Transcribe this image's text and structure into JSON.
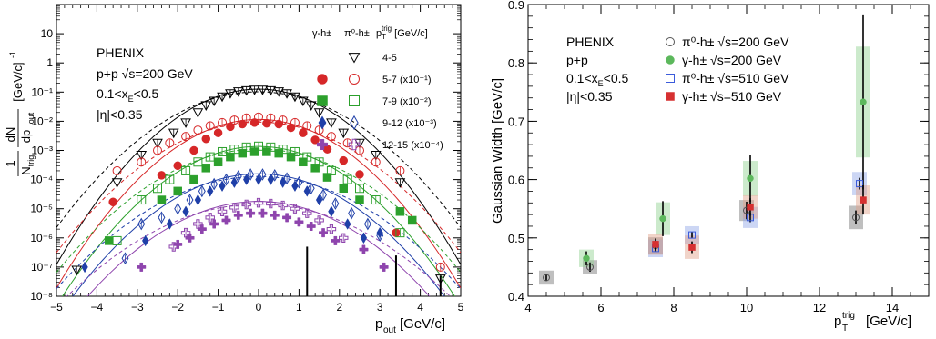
{
  "chart_data": [
    {
      "type": "scatter",
      "experiment": "PHENIX",
      "system": "p+p",
      "energy": "√s=200 GeV",
      "cut_xe": "0.1<x",
      "cut_xe_sub": "E",
      "cut_xe_tail": "<0.5",
      "cut_eta": "|η|<0.35",
      "ylabel_num": "1",
      "ylabel_den": "N",
      "ylabel_den_sub": "trig",
      "ylabel_frac2_num": "dN",
      "ylabel_frac2_den": "dp",
      "ylabel_frac2_den_sub": "out",
      "ylabel_unit": "[GeV/c]",
      "ylabel_unit_sup": "-1",
      "xlabel": "p",
      "xlabel_sub": "out",
      "xlabel_unit": "[GeV/c]",
      "xlim": [
        -5,
        5
      ],
      "ylim_log": [
        1e-08,
        100
      ],
      "yscale": "log",
      "xticks": [
        "−5",
        "−4",
        "−3",
        "−2",
        "−1",
        "0",
        "1",
        "2",
        "3",
        "4",
        "5"
      ],
      "yticks": [
        "10",
        "1",
        "10⁻¹",
        "10⁻²",
        "10⁻³",
        "10⁻⁴",
        "10⁻⁵",
        "10⁻⁶",
        "10⁻⁷",
        "10⁻⁸"
      ],
      "legend_header": {
        "gamma": "γ-h±",
        "pi0": "π⁰-h±",
        "ptrig": "p",
        "ptrig_sub": "T",
        "ptrig_sup": "trig",
        "unit": "[GeV/c]"
      },
      "legend_position": "top-right",
      "series": [
        {
          "label": "4-5",
          "scale": "",
          "color": "#000000",
          "gamma_marker": "",
          "pi0_marker": "triangle-down-open",
          "sigma": 1.0,
          "norm": 0.12,
          "points": [
            [
              -4.5,
              8e-08
            ],
            [
              -3.5,
              8e-05
            ],
            [
              -2.9,
              0.0007
            ],
            [
              -2.5,
              0.0018
            ],
            [
              -2.1,
              0.004
            ],
            [
              -1.8,
              0.009
            ],
            [
              -1.5,
              0.02
            ],
            [
              -1.3,
              0.035
            ],
            [
              -1.1,
              0.05
            ],
            [
              -0.9,
              0.07
            ],
            [
              -0.7,
              0.09
            ],
            [
              -0.5,
              0.105
            ],
            [
              -0.3,
              0.115
            ],
            [
              -0.1,
              0.12
            ],
            [
              0.1,
              0.12
            ],
            [
              0.3,
              0.115
            ],
            [
              0.5,
              0.105
            ],
            [
              0.7,
              0.09
            ],
            [
              0.9,
              0.07
            ],
            [
              1.1,
              0.05
            ],
            [
              1.3,
              0.035
            ],
            [
              1.5,
              0.02
            ],
            [
              1.8,
              0.009
            ],
            [
              2.1,
              0.004
            ],
            [
              2.5,
              0.0018
            ],
            [
              2.9,
              0.0007
            ],
            [
              3.5,
              8e-05
            ],
            [
              4.5,
              4e-08
            ]
          ]
        },
        {
          "label": "5-7 (x10⁻¹)",
          "scale": "",
          "color": "#d62728",
          "gamma_marker": "circle",
          "pi0_marker": "circle-open",
          "sigma": 1.02,
          "norm": 0.011,
          "gamma_points": [
            [
              -3.6,
              1.7e-05
            ],
            [
              -2.4,
              0.00014
            ],
            [
              -2.0,
              0.0003
            ],
            [
              -1.6,
              0.001
            ],
            [
              -1.3,
              0.0025
            ],
            [
              -1.0,
              0.004
            ],
            [
              -0.7,
              0.0065
            ],
            [
              -0.4,
              0.008
            ],
            [
              -0.1,
              0.009
            ],
            [
              0.2,
              0.0085
            ],
            [
              0.5,
              0.008
            ],
            [
              0.8,
              0.006
            ],
            [
              1.1,
              0.004
            ],
            [
              1.4,
              0.0023
            ],
            [
              1.7,
              0.0011
            ],
            [
              2.1,
              0.00045
            ],
            [
              2.5,
              0.00015
            ],
            [
              3.4,
              1.5e-06
            ]
          ],
          "pi0_points": [
            [
              -3.5,
              0.0002
            ],
            [
              -2.9,
              0.0004
            ],
            [
              -2.5,
              0.001
            ],
            [
              -2.2,
              0.0018
            ],
            [
              -1.8,
              0.003
            ],
            [
              -1.5,
              0.005
            ],
            [
              -1.2,
              0.007
            ],
            [
              -0.9,
              0.009
            ],
            [
              -0.6,
              0.011
            ],
            [
              -0.3,
              0.013
            ],
            [
              0.0,
              0.014
            ],
            [
              0.3,
              0.013
            ],
            [
              0.6,
              0.011
            ],
            [
              0.9,
              0.009
            ],
            [
              1.2,
              0.007
            ],
            [
              1.5,
              0.005
            ],
            [
              1.8,
              0.003
            ],
            [
              2.2,
              0.0018
            ],
            [
              2.5,
              0.001
            ],
            [
              2.9,
              0.0004
            ],
            [
              3.5,
              0.0002
            ],
            [
              4.5,
              1e-07
            ]
          ]
        },
        {
          "label": "7-9 (x10⁻²)",
          "scale": "",
          "color": "#2ca02c",
          "gamma_marker": "square",
          "pi0_marker": "square-open",
          "sigma": 1.05,
          "norm": 0.0013,
          "gamma_points": [
            [
              -3.7,
              8e-07
            ],
            [
              -2.4,
              2e-05
            ],
            [
              -2.0,
              4e-05
            ],
            [
              -1.6,
              0.0001
            ],
            [
              -1.3,
              0.00025
            ],
            [
              -1.0,
              0.0004
            ],
            [
              -0.7,
              0.0006
            ],
            [
              -0.4,
              0.0008
            ],
            [
              -0.1,
              0.0009
            ],
            [
              0.2,
              0.0009
            ],
            [
              0.5,
              0.0008
            ],
            [
              0.8,
              0.0006
            ],
            [
              1.1,
              0.0004
            ],
            [
              1.4,
              0.00025
            ],
            [
              1.7,
              0.00012
            ],
            [
              2.1,
              5e-05
            ],
            [
              2.5,
              2e-05
            ],
            [
              3.5,
              8e-06
            ],
            [
              3.8,
              4e-06
            ]
          ],
          "pi0_points": [
            [
              -3.5,
              8e-07
            ],
            [
              -2.9,
              2e-05
            ],
            [
              -2.5,
              5e-05
            ],
            [
              -2.2,
              0.0001
            ],
            [
              -1.8,
              0.0002
            ],
            [
              -1.5,
              0.0004
            ],
            [
              -1.2,
              0.0006
            ],
            [
              -0.9,
              0.0009
            ],
            [
              -0.6,
              0.0011
            ],
            [
              -0.3,
              0.0013
            ],
            [
              0.0,
              0.0014
            ],
            [
              0.3,
              0.0013
            ],
            [
              0.6,
              0.0011
            ],
            [
              0.9,
              0.0009
            ],
            [
              1.2,
              0.0006
            ],
            [
              1.5,
              0.0004
            ],
            [
              1.8,
              0.0002
            ],
            [
              2.2,
              0.0001
            ],
            [
              2.5,
              5e-05
            ],
            [
              2.9,
              2e-05
            ],
            [
              3.5,
              1.5e-06
            ]
          ]
        },
        {
          "label": "9-12 (x10⁻³)",
          "scale": "",
          "color": "#1f3fa8",
          "gamma_marker": "diamond",
          "pi0_marker": "diamond-open",
          "sigma": 1.1,
          "norm": 0.00015,
          "gamma_points": [
            [
              -4.3,
              1e-07
            ],
            [
              -2.8,
              8e-07
            ],
            [
              -2.2,
              3e-06
            ],
            [
              -1.8,
              8e-06
            ],
            [
              -1.5,
              2e-05
            ],
            [
              -1.2,
              4e-05
            ],
            [
              -0.9,
              6e-05
            ],
            [
              -0.6,
              8e-05
            ],
            [
              -0.3,
              0.0001
            ],
            [
              0.0,
              0.0001
            ],
            [
              0.3,
              0.0001
            ],
            [
              0.6,
              8e-05
            ],
            [
              0.9,
              6e-05
            ],
            [
              1.2,
              4e-05
            ],
            [
              1.5,
              2e-05
            ],
            [
              1.8,
              8e-06
            ],
            [
              2.2,
              3e-06
            ],
            [
              2.6,
              1e-06
            ],
            [
              3.0,
              1.5e-06
            ]
          ],
          "pi0_points": [
            [
              -3.3,
              2e-07
            ],
            [
              -2.9,
              3e-06
            ],
            [
              -2.4,
              5e-06
            ],
            [
              -2.0,
              1e-05
            ],
            [
              -1.7,
              2e-05
            ],
            [
              -1.4,
              4e-05
            ],
            [
              -1.1,
              7e-05
            ],
            [
              -0.8,
              0.0001
            ],
            [
              -0.5,
              0.00013
            ],
            [
              -0.2,
              0.00015
            ],
            [
              0.1,
              0.00015
            ],
            [
              0.4,
              0.00014
            ],
            [
              0.7,
              0.00011
            ],
            [
              1.0,
              8e-05
            ],
            [
              1.3,
              5e-05
            ],
            [
              1.6,
              3e-05
            ],
            [
              1.9,
              1.5e-05
            ],
            [
              2.3,
              7e-06
            ],
            [
              2.7,
              3e-06
            ],
            [
              3.0,
              1.2e-06
            ]
          ]
        },
        {
          "label": "12-15 (x10⁻⁴)",
          "scale": "",
          "color": "#8e44ad",
          "gamma_marker": "cross",
          "pi0_marker": "cross-open",
          "sigma": 1.15,
          "norm": 1.7e-05,
          "gamma_points": [
            [
              -2.9,
              1e-07
            ],
            [
              -2.0,
              6e-07
            ],
            [
              -1.7,
              1e-06
            ],
            [
              -1.4,
              2e-06
            ],
            [
              -1.1,
              3e-06
            ],
            [
              -0.8,
              4e-06
            ],
            [
              -0.5,
              6e-06
            ],
            [
              -0.2,
              7e-06
            ],
            [
              0.1,
              7e-06
            ],
            [
              0.4,
              6e-06
            ],
            [
              0.7,
              5e-06
            ],
            [
              1.0,
              3.5e-06
            ],
            [
              1.3,
              2.5e-06
            ],
            [
              1.6,
              1.5e-06
            ],
            [
              1.9,
              8e-07
            ],
            [
              2.6,
              4e-07
            ],
            [
              3.1,
              1e-07
            ]
          ],
          "pi0_points": [
            [
              -2.1,
              5e-07
            ],
            [
              -1.8,
              1.5e-06
            ],
            [
              -1.5,
              3e-06
            ],
            [
              -1.2,
              5e-06
            ],
            [
              -0.9,
              8e-06
            ],
            [
              -0.6,
              1.1e-05
            ],
            [
              -0.3,
              1.4e-05
            ],
            [
              0.0,
              1.6e-05
            ],
            [
              0.3,
              1.5e-05
            ],
            [
              0.6,
              1.3e-05
            ],
            [
              0.9,
              1e-05
            ],
            [
              1.2,
              7e-06
            ],
            [
              1.5,
              4e-06
            ],
            [
              1.8,
              2e-06
            ],
            [
              2.1,
              1e-06
            ]
          ]
        }
      ]
    },
    {
      "type": "scatter",
      "experiment": "PHENIX",
      "system": "p+p",
      "cut_xe": "0.1<x",
      "cut_xe_sub": "E",
      "cut_xe_tail": "<0.5",
      "cut_eta": "|η|<0.35",
      "ylabel": "Gaussian Width [GeV/c]",
      "xlabel": "p",
      "xlabel_sub": "T",
      "xlabel_sup": "trig",
      "xlabel_unit": "[GeV/c]",
      "xlim": [
        4,
        15
      ],
      "ylim": [
        0.4,
        0.9
      ],
      "xticks": [
        "4",
        "6",
        "8",
        "10",
        "12",
        "14"
      ],
      "yticks": [
        "0.4",
        "0.5",
        "0.6",
        "0.7",
        "0.8",
        "0.9"
      ],
      "legend_position": "top-center",
      "series": [
        {
          "name": "π⁰-h± √s=200 GeV",
          "marker": "circle-open",
          "color": "#555555",
          "box_color": "#707070",
          "points": [
            [
              4.5,
              0.432,
              0.005,
              0.012
            ],
            [
              5.7,
              0.45,
              0.008,
              0.012
            ],
            [
              7.5,
              0.487,
              0.008,
              0.014
            ],
            [
              10.0,
              0.547,
              0.015,
              0.018
            ],
            [
              13.0,
              0.535,
              0.012,
              0.02
            ]
          ]
        },
        {
          "name": "γ-h± √s=200 GeV",
          "marker": "circle",
          "color": "#5cb85c",
          "box_color": "#8fd18f",
          "points": [
            [
              5.6,
              0.465,
              0.012,
              0.015
            ],
            [
              7.7,
              0.533,
              0.03,
              0.028
            ],
            [
              10.1,
              0.602,
              0.04,
              0.03
            ],
            [
              13.2,
              0.733,
              0.15,
              0.095
            ]
          ]
        },
        {
          "name": "π⁰-h± √s=510 GeV",
          "marker": "square-open",
          "color": "#3b5bdb",
          "box_color": "#8fa3e6",
          "points": [
            [
              7.5,
              0.482,
              0.005,
              0.015
            ],
            [
              8.5,
              0.505,
              0.005,
              0.015
            ],
            [
              10.1,
              0.535,
              0.008,
              0.018
            ],
            [
              13.1,
              0.593,
              0.01,
              0.02
            ]
          ]
        },
        {
          "name": "γ-h± √s=510 GeV",
          "marker": "square",
          "color": "#d63031",
          "box_color": "#e0a088",
          "points": [
            [
              7.5,
              0.489,
              0.01,
              0.018
            ],
            [
              8.5,
              0.484,
              0.01,
              0.02
            ],
            [
              10.1,
              0.553,
              0.015,
              0.02
            ],
            [
              13.2,
              0.565,
              0.025,
              0.025
            ]
          ]
        }
      ]
    }
  ]
}
